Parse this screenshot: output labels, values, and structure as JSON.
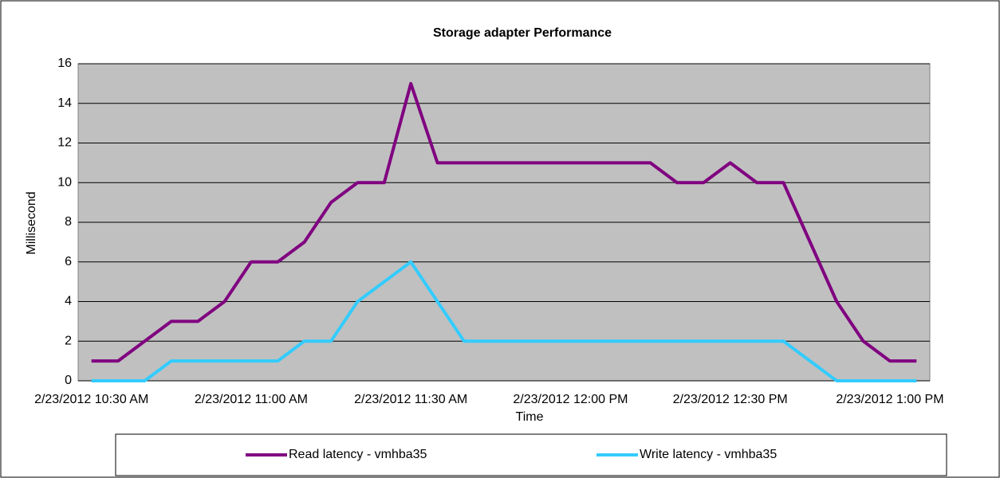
{
  "chart_data": {
    "type": "line",
    "title": "Storage adapter Performance",
    "x_label": "Time",
    "y_label": "Millisecond",
    "categories": [
      "2/23/2012 10:30 AM",
      null,
      null,
      null,
      null,
      null,
      "2/23/2012 11:00 AM",
      null,
      null,
      null,
      null,
      null,
      "2/23/2012 11:30 AM",
      null,
      null,
      null,
      null,
      null,
      "2/23/2012 12:00 PM",
      null,
      null,
      null,
      null,
      null,
      "2/23/2012 12:30 PM",
      null,
      null,
      null,
      null,
      null,
      "2/23/2012 1:00 PM",
      null
    ],
    "series": [
      {
        "name": "Read latency - vmhba35",
        "color": "#800080",
        "values": [
          1,
          1,
          2,
          3,
          3,
          4,
          6,
          6,
          7,
          9,
          10,
          10,
          15,
          11,
          11,
          11,
          11,
          11,
          11,
          11,
          11,
          11,
          10,
          10,
          11,
          10,
          10,
          7,
          4,
          2,
          1,
          1
        ]
      },
      {
        "name": "Write latency - vmhba35",
        "color": "#33ccff",
        "values": [
          0,
          0,
          0,
          1,
          1,
          1,
          1,
          1,
          2,
          2,
          4,
          5,
          6,
          4,
          2,
          2,
          2,
          2,
          2,
          2,
          2,
          2,
          2,
          2,
          2,
          2,
          2,
          1,
          0,
          0,
          0,
          0
        ]
      }
    ],
    "ylim": [
      0,
      16
    ],
    "yticks": [
      0,
      2,
      4,
      6,
      8,
      10,
      12,
      14,
      16
    ],
    "grid": true,
    "legend": "bottom"
  }
}
